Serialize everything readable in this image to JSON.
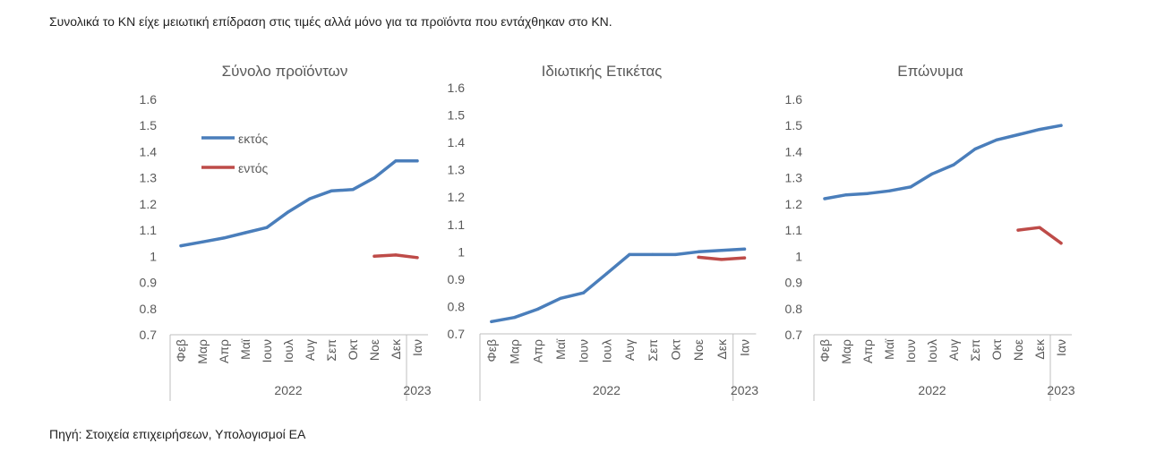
{
  "page": {
    "heading": "Συνολικά το ΚΝ είχε μειωτική επίδραση στις τιμές αλλά μόνο για τα προϊόντα που εντάχθηκαν στο ΚΝ.",
    "source": "Πηγή: Στοιχεία επιχειρήσεων, Υπολογισμοί ΕΑ"
  },
  "colors": {
    "text": "#222222",
    "axis_text": "#595959",
    "axis_line": "#bfbfbf"
  },
  "chart_data": [
    {
      "type": "line",
      "title": "Σύνολο προϊόντων",
      "categories": [
        "Φεβ",
        "Μαρ",
        "Απρ",
        "Μαϊ",
        "Ιουν",
        "Ιουλ",
        "Αυγ",
        "Σεπ",
        "Οκτ",
        "Νοε",
        "Δεκ",
        "Ιαν"
      ],
      "category_groups": [
        {
          "label": "2022",
          "count": 11
        },
        {
          "label": "2023",
          "count": 1
        }
      ],
      "ylim": [
        0.7,
        1.6
      ],
      "yticks": [
        0.7,
        0.8,
        0.9,
        1,
        1.1,
        1.2,
        1.3,
        1.4,
        1.5,
        1.6
      ],
      "grid": false,
      "legend": "top-left",
      "series": [
        {
          "name": "εκτός",
          "color": "#4a7ebb",
          "values": [
            1.04,
            1.055,
            1.07,
            1.09,
            1.11,
            1.17,
            1.22,
            1.25,
            1.255,
            1.3,
            1.365,
            1.365
          ]
        },
        {
          "name": "εντός",
          "color": "#be4b48",
          "values": [
            null,
            null,
            null,
            null,
            null,
            null,
            null,
            null,
            null,
            1.0,
            1.005,
            0.995
          ]
        }
      ]
    },
    {
      "type": "line",
      "title": "Ιδιωτικής Ετικέτας",
      "categories": [
        "Φεβ",
        "Μαρ",
        "Απρ",
        "Μαϊ",
        "Ιουν",
        "Ιουλ",
        "Αυγ",
        "Σεπ",
        "Οκτ",
        "Νοε",
        "Δεκ",
        "Ιαν"
      ],
      "category_groups": [
        {
          "label": "2022",
          "count": 11
        },
        {
          "label": "2023",
          "count": 1
        }
      ],
      "ylim": [
        0.7,
        1.6
      ],
      "yticks": [
        0.7,
        0.8,
        0.9,
        1,
        1.1,
        1.2,
        1.3,
        1.4,
        1.5,
        1.6
      ],
      "grid": false,
      "series": [
        {
          "color": "#4a7ebb",
          "values": [
            0.745,
            0.76,
            0.79,
            0.83,
            0.85,
            0.92,
            0.99,
            0.99,
            0.99,
            1.0,
            1.005,
            1.01
          ]
        },
        {
          "color": "#be4b48",
          "values": [
            null,
            null,
            null,
            null,
            null,
            null,
            null,
            null,
            null,
            0.98,
            0.972,
            0.978
          ]
        }
      ]
    },
    {
      "type": "line",
      "title": "Επώνυμα",
      "categories": [
        "Φεβ",
        "Μαρ",
        "Απρ",
        "Μαϊ",
        "Ιουν",
        "Ιουλ",
        "Αυγ",
        "Σεπ",
        "Οκτ",
        "Νοε",
        "Δεκ",
        "Ιαν"
      ],
      "category_groups": [
        {
          "label": "2022",
          "count": 11
        },
        {
          "label": "2023",
          "count": 1
        }
      ],
      "ylim": [
        0.7,
        1.6
      ],
      "yticks": [
        0.7,
        0.8,
        0.9,
        1,
        1.1,
        1.2,
        1.3,
        1.4,
        1.5,
        1.6
      ],
      "grid": false,
      "series": [
        {
          "color": "#4a7ebb",
          "values": [
            1.22,
            1.235,
            1.24,
            1.25,
            1.265,
            1.315,
            1.35,
            1.41,
            1.445,
            1.465,
            1.485,
            1.5
          ]
        },
        {
          "color": "#be4b48",
          "values": [
            null,
            null,
            null,
            null,
            null,
            null,
            null,
            null,
            null,
            1.1,
            1.11,
            1.05
          ]
        }
      ]
    }
  ]
}
